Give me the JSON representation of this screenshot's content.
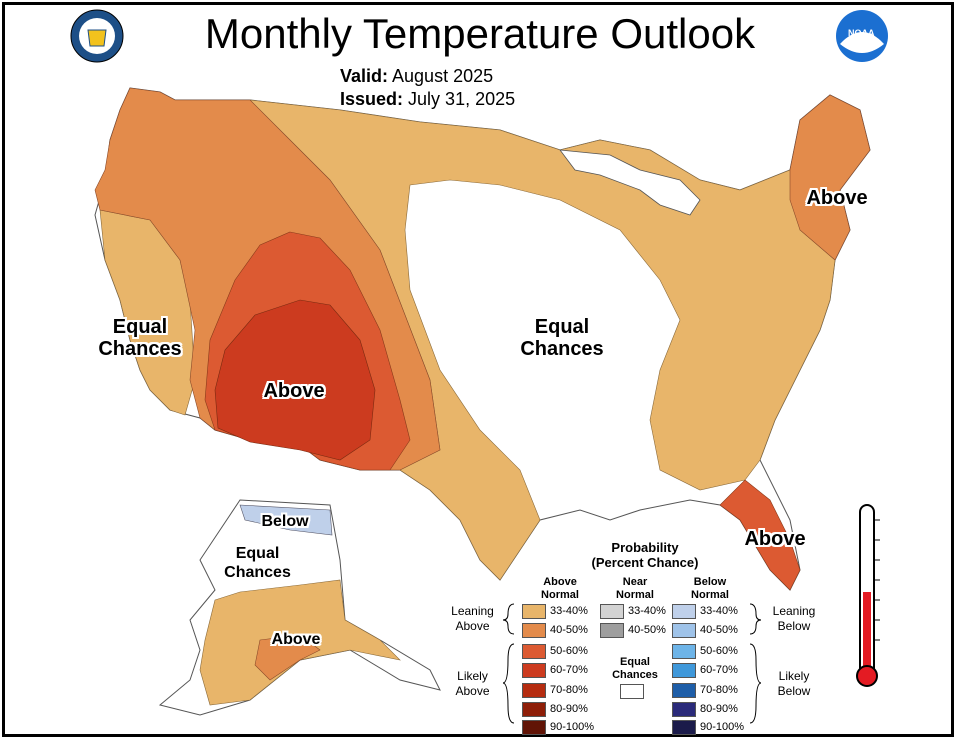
{
  "title": "Monthly Temperature Outlook",
  "valid_label": "Valid:",
  "valid_value": "August 2025",
  "issued_label": "Issued:",
  "issued_value": "July 31, 2025",
  "logos": {
    "left": "doc-seal",
    "right": "noaa-logo",
    "right_text": "NOAA"
  },
  "map_labels": {
    "west_ec_1": "Equal",
    "west_ec_2": "Chances",
    "central_ec_1": "Equal",
    "central_ec_2": "Chances",
    "southwest_above": "Above",
    "northeast_above": "Above",
    "florida_above": "Above",
    "alaska_below": "Below",
    "alaska_ec_1": "Equal",
    "alaska_ec_2": "Chances",
    "alaska_above": "Above"
  },
  "legend": {
    "title_1": "Probability",
    "title_2": "(Percent Chance)",
    "above_header_1": "Above",
    "above_header_2": "Normal",
    "near_header_1": "Near",
    "near_header_2": "Normal",
    "below_header_1": "Below",
    "below_header_2": "Normal",
    "leaning_above_1": "Leaning",
    "leaning_above_2": "Above",
    "likely_above_1": "Likely",
    "likely_above_2": "Above",
    "leaning_below_1": "Leaning",
    "leaning_below_2": "Below",
    "likely_below_1": "Likely",
    "likely_below_2": "Below",
    "ec_1": "Equal",
    "ec_2": "Chances",
    "above": [
      {
        "label": "33-40%",
        "color": "#E8B56A"
      },
      {
        "label": "40-50%",
        "color": "#E38B4B"
      },
      {
        "label": "50-60%",
        "color": "#DC5A32"
      },
      {
        "label": "60-70%",
        "color": "#CC3B1F"
      },
      {
        "label": "70-80%",
        "color": "#B52C10"
      },
      {
        "label": "80-90%",
        "color": "#8E1E08"
      },
      {
        "label": "90-100%",
        "color": "#611406"
      }
    ],
    "near": [
      {
        "label": "33-40%",
        "color": "#D3D3D3"
      },
      {
        "label": "40-50%",
        "color": "#9E9E9E"
      }
    ],
    "below": [
      {
        "label": "33-40%",
        "color": "#BFD0EA"
      },
      {
        "label": "40-50%",
        "color": "#9FC3E9"
      },
      {
        "label": "50-60%",
        "color": "#6DB4E8"
      },
      {
        "label": "60-70%",
        "color": "#3F98DA"
      },
      {
        "label": "70-80%",
        "color": "#1E5EA8"
      },
      {
        "label": "80-90%",
        "color": "#2A2A7A"
      },
      {
        "label": "90-100%",
        "color": "#1B1B4A"
      }
    ]
  }
}
